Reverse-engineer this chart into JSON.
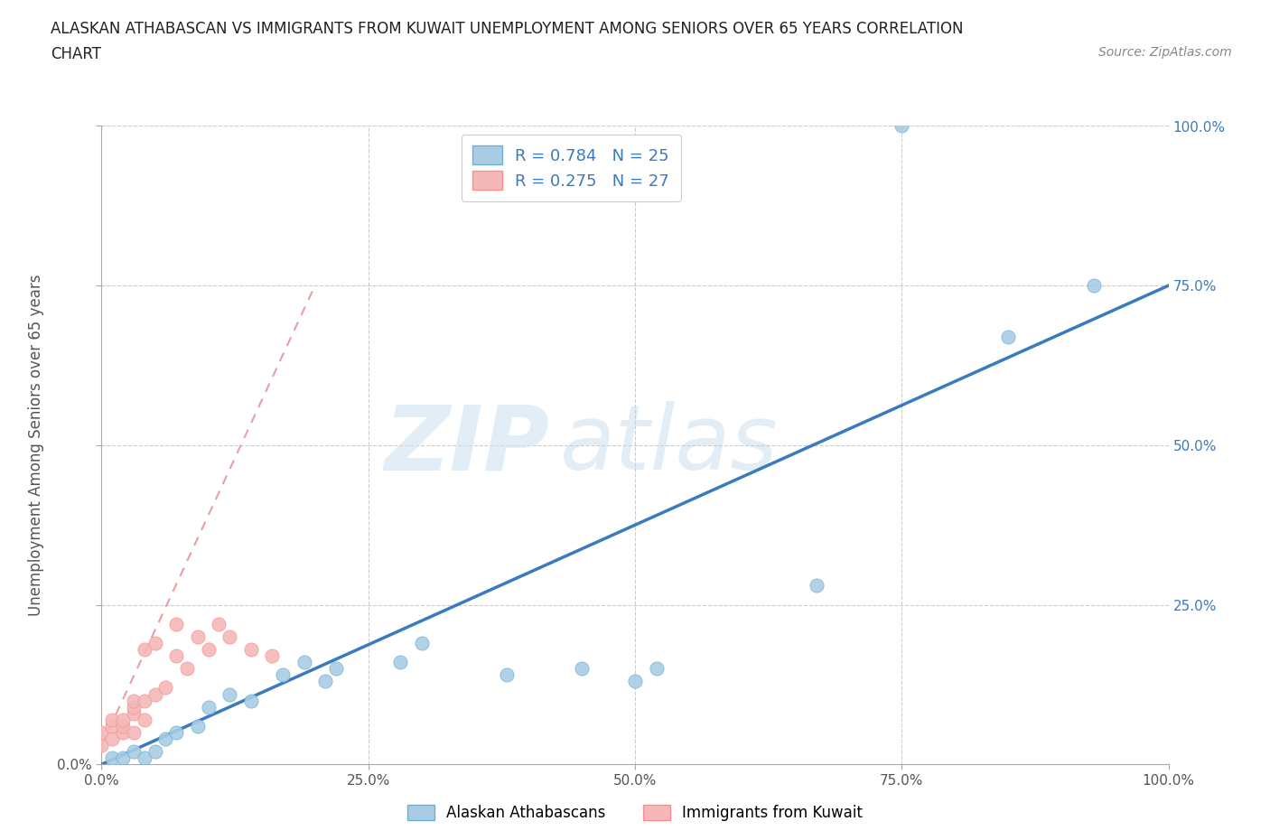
{
  "title_line1": "ALASKAN ATHABASCAN VS IMMIGRANTS FROM KUWAIT UNEMPLOYMENT AMONG SENIORS OVER 65 YEARS CORRELATION",
  "title_line2": "CHART",
  "source_text": "Source: ZipAtlas.com",
  "ylabel": "Unemployment Among Seniors over 65 years",
  "xlim": [
    0.0,
    1.0
  ],
  "ylim": [
    0.0,
    1.0
  ],
  "xtick_labels": [
    "0.0%",
    "25.0%",
    "50.0%",
    "75.0%",
    "100.0%"
  ],
  "xtick_values": [
    0.0,
    0.25,
    0.5,
    0.75,
    1.0
  ],
  "right_ytick_labels": [
    "25.0%",
    "50.0%",
    "75.0%",
    "100.0%"
  ],
  "right_ytick_values": [
    0.25,
    0.5,
    0.75,
    1.0
  ],
  "watermark_zip": "ZIP",
  "watermark_atlas": "atlas",
  "legend_blue_label": "Alaskan Athabascans",
  "legend_pink_label": "Immigrants from Kuwait",
  "blue_R": "0.784",
  "blue_N": "25",
  "pink_R": "0.275",
  "pink_N": "27",
  "blue_color": "#a8cce4",
  "blue_edge_color": "#6baed6",
  "pink_color": "#f4b8b8",
  "pink_edge_color": "#fc8d8d",
  "blue_line_color": "#3a7abf",
  "pink_line_color": "#e8a0a0",
  "blue_scatter": [
    [
      0.01,
      0.01
    ],
    [
      0.02,
      0.01
    ],
    [
      0.03,
      0.02
    ],
    [
      0.04,
      0.01
    ],
    [
      0.05,
      0.02
    ],
    [
      0.06,
      0.04
    ],
    [
      0.07,
      0.05
    ],
    [
      0.09,
      0.06
    ],
    [
      0.1,
      0.09
    ],
    [
      0.12,
      0.11
    ],
    [
      0.14,
      0.1
    ],
    [
      0.17,
      0.14
    ],
    [
      0.19,
      0.16
    ],
    [
      0.21,
      0.13
    ],
    [
      0.22,
      0.15
    ],
    [
      0.28,
      0.16
    ],
    [
      0.3,
      0.19
    ],
    [
      0.38,
      0.14
    ],
    [
      0.45,
      0.15
    ],
    [
      0.5,
      0.13
    ],
    [
      0.52,
      0.15
    ],
    [
      0.67,
      0.28
    ],
    [
      0.75,
      1.0
    ],
    [
      0.85,
      0.67
    ],
    [
      0.93,
      0.75
    ]
  ],
  "pink_scatter": [
    [
      0.0,
      0.03
    ],
    [
      0.0,
      0.05
    ],
    [
      0.01,
      0.04
    ],
    [
      0.01,
      0.06
    ],
    [
      0.01,
      0.07
    ],
    [
      0.02,
      0.05
    ],
    [
      0.02,
      0.06
    ],
    [
      0.02,
      0.07
    ],
    [
      0.03,
      0.05
    ],
    [
      0.03,
      0.08
    ],
    [
      0.03,
      0.09
    ],
    [
      0.03,
      0.1
    ],
    [
      0.04,
      0.07
    ],
    [
      0.04,
      0.1
    ],
    [
      0.04,
      0.18
    ],
    [
      0.05,
      0.11
    ],
    [
      0.05,
      0.19
    ],
    [
      0.06,
      0.12
    ],
    [
      0.07,
      0.17
    ],
    [
      0.07,
      0.22
    ],
    [
      0.08,
      0.15
    ],
    [
      0.09,
      0.2
    ],
    [
      0.1,
      0.18
    ],
    [
      0.11,
      0.22
    ],
    [
      0.12,
      0.2
    ],
    [
      0.14,
      0.18
    ],
    [
      0.16,
      0.17
    ]
  ],
  "blue_trendline": [
    [
      0.0,
      0.0
    ],
    [
      1.0,
      0.75
    ]
  ],
  "pink_trendline": [
    [
      0.0,
      0.03
    ],
    [
      0.2,
      0.75
    ]
  ],
  "background_color": "#ffffff",
  "grid_color": "#cccccc"
}
